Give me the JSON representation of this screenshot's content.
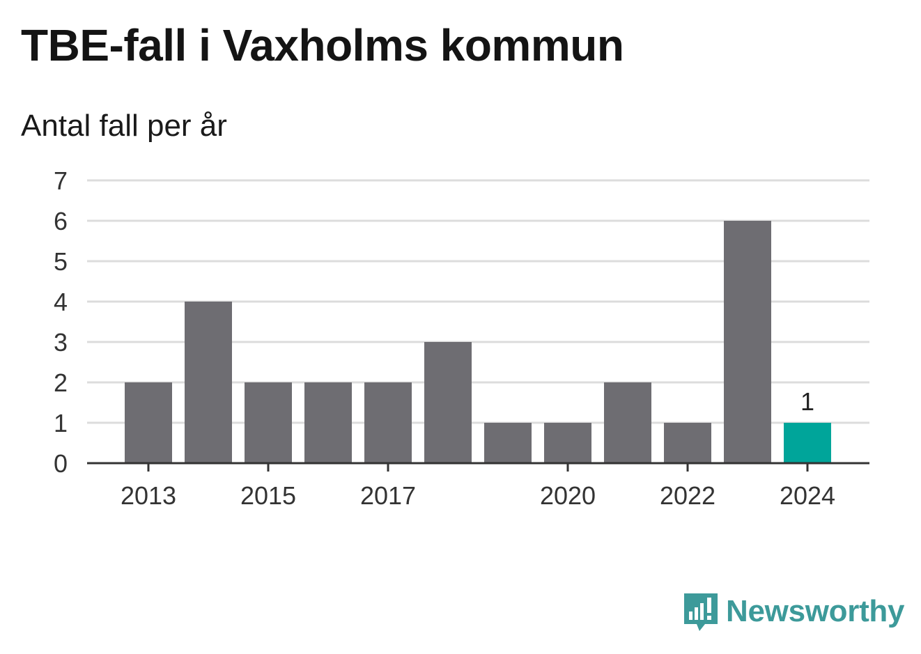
{
  "title": "TBE-fall i Vaxholms kommun",
  "subtitle": "Antal fall per år",
  "brand": "Newsworthy",
  "colors": {
    "bar": "#6e6d72",
    "highlight": "#00a59a",
    "grid": "#dcdcdc",
    "axis": "#333333",
    "brand": "#3d9a9a"
  },
  "chart_data": {
    "type": "bar",
    "categories": [
      "2013",
      "2014",
      "2015",
      "2016",
      "2017",
      "2018",
      "2019",
      "2020",
      "2021",
      "2022",
      "2023",
      "2024"
    ],
    "values": [
      2,
      4,
      2,
      2,
      2,
      3,
      1,
      1,
      2,
      1,
      6,
      1
    ],
    "x_tick_labels": [
      "2013",
      "2015",
      "2017",
      "2020",
      "2022",
      "2024"
    ],
    "y_ticks": [
      0,
      1,
      2,
      3,
      4,
      5,
      6,
      7
    ],
    "ylim": [
      0,
      7
    ],
    "grid": true,
    "highlight_category": "2024",
    "data_labels": [
      {
        "category": "2024",
        "text": "1"
      }
    ]
  }
}
